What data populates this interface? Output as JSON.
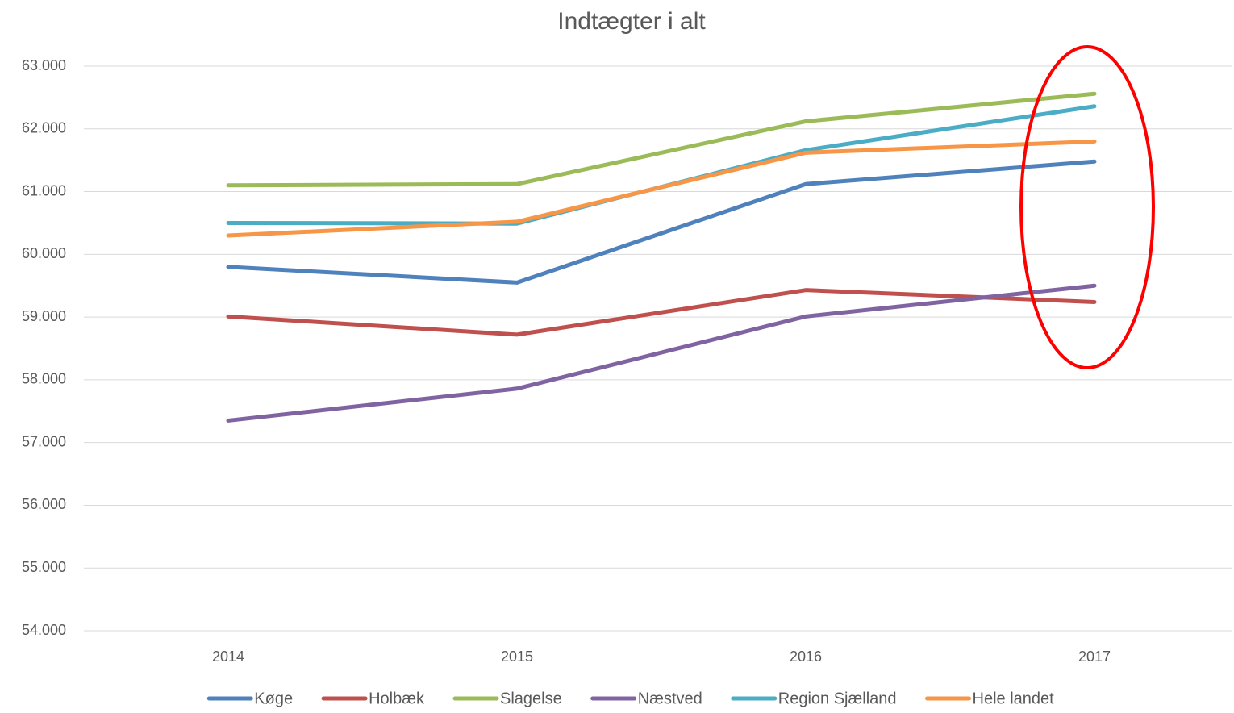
{
  "chart_data": {
    "type": "line",
    "title": "Indtægter i alt",
    "categories": [
      "2014",
      "2015",
      "2016",
      "2017"
    ],
    "series": [
      {
        "name": "Køge",
        "color": "#4f81bd",
        "values": [
          59800,
          59550,
          61120,
          61480
        ]
      },
      {
        "name": "Holbæk",
        "color": "#c0504d",
        "values": [
          59010,
          58720,
          59430,
          59240
        ]
      },
      {
        "name": "Slagelse",
        "color": "#9bbb59",
        "values": [
          61100,
          61120,
          62120,
          62560
        ]
      },
      {
        "name": "Næstved",
        "color": "#8064a2",
        "values": [
          57350,
          57860,
          59010,
          59500
        ]
      },
      {
        "name": "Region Sjælland",
        "color": "#4bacc6",
        "values": [
          60500,
          60490,
          61660,
          62360
        ]
      },
      {
        "name": "Hele landet",
        "color": "#f79646",
        "values": [
          60300,
          60520,
          61620,
          61800
        ]
      }
    ],
    "ylim": [
      54000,
      63000
    ],
    "yticks": [
      {
        "value": 54000,
        "label": "54.000"
      },
      {
        "value": 55000,
        "label": "55.000"
      },
      {
        "value": 56000,
        "label": "56.000"
      },
      {
        "value": 57000,
        "label": "57.000"
      },
      {
        "value": 58000,
        "label": "58.000"
      },
      {
        "value": 59000,
        "label": "59.000"
      },
      {
        "value": 60000,
        "label": "60.000"
      },
      {
        "value": 61000,
        "label": "61.000"
      },
      {
        "value": 62000,
        "label": "62.000"
      },
      {
        "value": 63000,
        "label": "63.000"
      }
    ],
    "grid": true,
    "legend": "bottom"
  }
}
